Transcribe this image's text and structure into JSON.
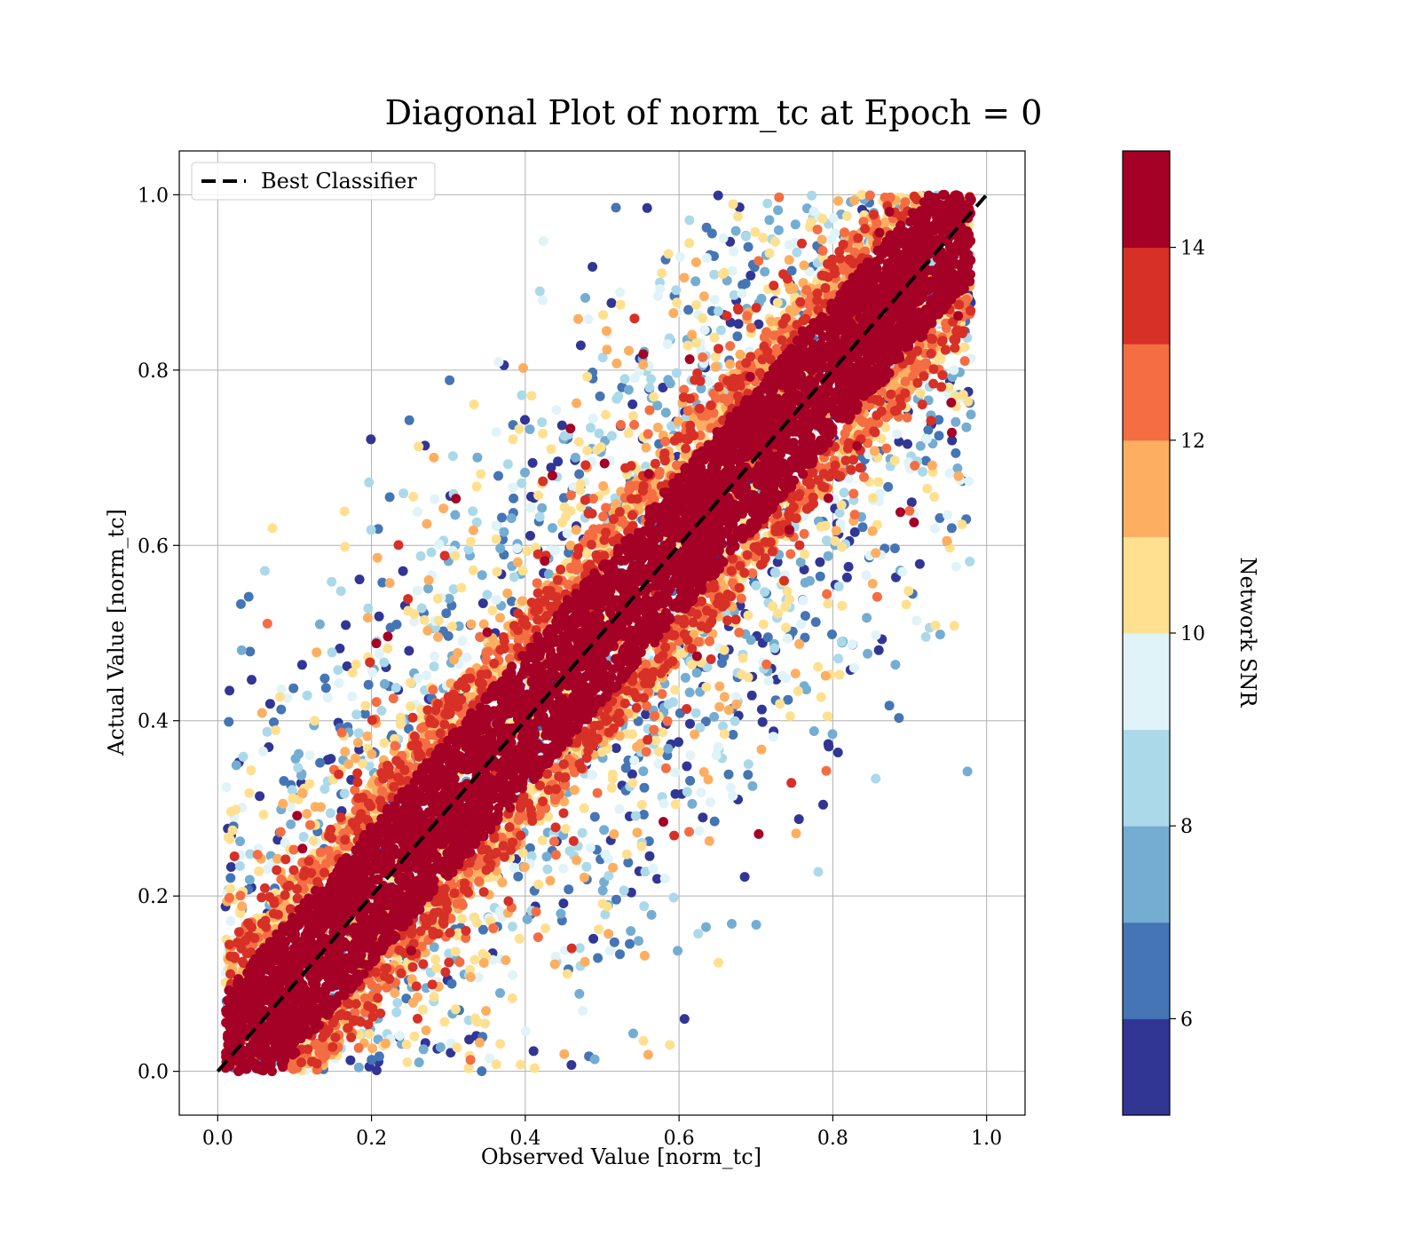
{
  "chart_data": {
    "type": "scatter",
    "title": "Diagonal Plot of norm_tc at Epoch = 0",
    "xlabel": "Observed Value [norm_tc]",
    "ylabel": "Actual Value [norm_tc]",
    "xlim": [
      -0.05,
      1.05
    ],
    "ylim": [
      -0.05,
      1.05
    ],
    "x_ticks": [
      "0.0",
      "0.2",
      "0.4",
      "0.6",
      "0.8",
      "1.0"
    ],
    "y_ticks": [
      "0.0",
      "0.2",
      "0.4",
      "0.6",
      "0.8",
      "1.0"
    ],
    "grid": true,
    "legend": {
      "placement": "top-left",
      "entries": [
        {
          "label": "Best Classifier",
          "style": "dashed",
          "color": "#000000"
        }
      ]
    },
    "reference_line": {
      "label": "Best Classifier",
      "x": [
        0.0,
        1.0
      ],
      "y": [
        0.0,
        1.0
      ]
    },
    "points": {
      "x_range": [
        0.01,
        0.98
      ],
      "y_range": [
        0.0,
        1.0
      ],
      "description_of_distribution": "dense high-SNR band along y = x, lower-SNR points scattered widely",
      "high_snr_band_halfwidth": 0.08,
      "color_by": "Network SNR"
    },
    "colorbar": {
      "label": "Network SNR",
      "range": [
        5,
        15
      ],
      "ticks": [
        "6",
        "8",
        "10",
        "12",
        "14"
      ],
      "tick_values": [
        6,
        8,
        10,
        12,
        14
      ],
      "colors": [
        "#313695",
        "#4575b4",
        "#74add1",
        "#abd9e9",
        "#e0f3f8",
        "#fee090",
        "#fdae61",
        "#f46d43",
        "#d73027",
        "#a50026"
      ],
      "placement": "right"
    }
  }
}
